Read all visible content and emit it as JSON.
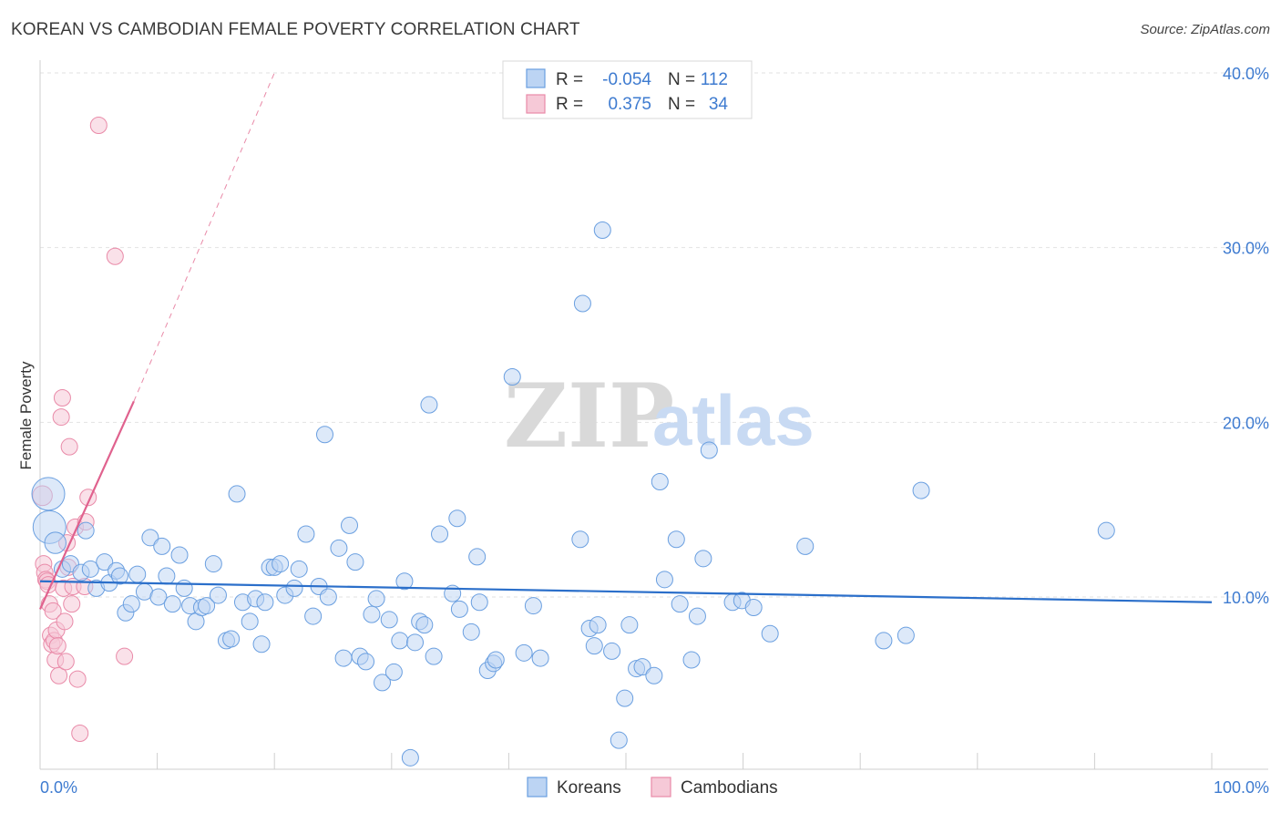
{
  "title": "KOREAN VS CAMBODIAN FEMALE POVERTY CORRELATION CHART",
  "source": "Source: ZipAtlas.com",
  "watermark": {
    "zip": "ZIP",
    "atlas": "atlas"
  },
  "colors": {
    "korean": "#6a9fe0",
    "korean_fill": "#bcd4f3",
    "korean_line": "#2b6fca",
    "cambodian": "#e98aa8",
    "cambodian_fill": "#f6c9d7",
    "cambodian_line": "#e0628e",
    "axis_tick": "#3e7bd0"
  },
  "legend": {
    "rows": [
      {
        "r_label": "R =",
        "r_value": "-0.054",
        "n_label": "N =",
        "n_value": "112"
      },
      {
        "r_label": "R =",
        "r_value": "0.375",
        "n_label": "N =",
        "n_value": "34"
      }
    ],
    "bottom": [
      "Koreans",
      "Cambodians"
    ]
  },
  "chart_data": {
    "type": "scatter",
    "title": "KOREAN VS CAMBODIAN FEMALE POVERTY CORRELATION CHART",
    "xlabel": "",
    "ylabel": "Female Poverty",
    "xlim": [
      0,
      100
    ],
    "ylim": [
      0,
      42
    ],
    "x_tick_labels": [
      "0.0%",
      "100.0%"
    ],
    "y_ticks": [
      10,
      20,
      30,
      40
    ],
    "y_tick_labels": [
      "10.0%",
      "20.0%",
      "30.0%",
      "40.0%"
    ],
    "grid": true,
    "legend_placement": "top-center",
    "series": [
      {
        "name": "Koreans",
        "r": -0.054,
        "n": 112,
        "trend": {
          "x": [
            0,
            100
          ],
          "y": [
            10.9,
            9.7
          ]
        },
        "points": [
          {
            "x": 0.7,
            "y": 15.9,
            "s": 2
          },
          {
            "x": 0.8,
            "y": 14.0,
            "s": 2
          },
          {
            "x": 1.3,
            "y": 13.1,
            "s": 1.3
          },
          {
            "x": 1.9,
            "y": 11.6,
            "s": 1
          },
          {
            "x": 2.6,
            "y": 11.9,
            "s": 1
          },
          {
            "x": 3.5,
            "y": 11.4,
            "s": 1
          },
          {
            "x": 3.9,
            "y": 13.8,
            "s": 1
          },
          {
            "x": 4.3,
            "y": 11.6,
            "s": 1
          },
          {
            "x": 4.8,
            "y": 10.5,
            "s": 1
          },
          {
            "x": 5.5,
            "y": 12.0,
            "s": 1
          },
          {
            "x": 5.9,
            "y": 10.8,
            "s": 1
          },
          {
            "x": 6.5,
            "y": 11.5,
            "s": 1
          },
          {
            "x": 6.8,
            "y": 11.2,
            "s": 1
          },
          {
            "x": 7.3,
            "y": 9.1,
            "s": 1
          },
          {
            "x": 7.8,
            "y": 9.6,
            "s": 1
          },
          {
            "x": 8.3,
            "y": 11.3,
            "s": 1
          },
          {
            "x": 8.9,
            "y": 10.3,
            "s": 1
          },
          {
            "x": 9.4,
            "y": 13.4,
            "s": 1
          },
          {
            "x": 10.1,
            "y": 10.0,
            "s": 1
          },
          {
            "x": 10.4,
            "y": 12.9,
            "s": 1
          },
          {
            "x": 10.8,
            "y": 11.2,
            "s": 1
          },
          {
            "x": 11.3,
            "y": 9.6,
            "s": 1
          },
          {
            "x": 11.9,
            "y": 12.4,
            "s": 1
          },
          {
            "x": 12.3,
            "y": 10.5,
            "s": 1
          },
          {
            "x": 12.8,
            "y": 9.5,
            "s": 1
          },
          {
            "x": 13.3,
            "y": 8.6,
            "s": 1
          },
          {
            "x": 13.8,
            "y": 9.4,
            "s": 1
          },
          {
            "x": 14.2,
            "y": 9.5,
            "s": 1
          },
          {
            "x": 14.8,
            "y": 11.9,
            "s": 1
          },
          {
            "x": 15.2,
            "y": 10.1,
            "s": 1
          },
          {
            "x": 15.9,
            "y": 7.5,
            "s": 1
          },
          {
            "x": 16.3,
            "y": 7.6,
            "s": 1
          },
          {
            "x": 16.8,
            "y": 15.9,
            "s": 1
          },
          {
            "x": 17.3,
            "y": 9.7,
            "s": 1
          },
          {
            "x": 17.9,
            "y": 8.6,
            "s": 1
          },
          {
            "x": 18.4,
            "y": 9.9,
            "s": 1
          },
          {
            "x": 18.9,
            "y": 7.3,
            "s": 1
          },
          {
            "x": 19.2,
            "y": 9.7,
            "s": 1
          },
          {
            "x": 19.6,
            "y": 11.7,
            "s": 1
          },
          {
            "x": 20.0,
            "y": 11.7,
            "s": 1
          },
          {
            "x": 20.5,
            "y": 11.9,
            "s": 1
          },
          {
            "x": 20.9,
            "y": 10.1,
            "s": 1
          },
          {
            "x": 21.7,
            "y": 10.5,
            "s": 1
          },
          {
            "x": 22.1,
            "y": 11.6,
            "s": 1
          },
          {
            "x": 22.7,
            "y": 13.6,
            "s": 1
          },
          {
            "x": 23.3,
            "y": 8.9,
            "s": 1
          },
          {
            "x": 23.8,
            "y": 10.6,
            "s": 1
          },
          {
            "x": 24.3,
            "y": 19.3,
            "s": 1
          },
          {
            "x": 24.6,
            "y": 10.0,
            "s": 1
          },
          {
            "x": 25.5,
            "y": 12.8,
            "s": 1
          },
          {
            "x": 25.9,
            "y": 6.5,
            "s": 1
          },
          {
            "x": 26.4,
            "y": 14.1,
            "s": 1
          },
          {
            "x": 26.9,
            "y": 12.0,
            "s": 1
          },
          {
            "x": 27.3,
            "y": 6.6,
            "s": 1
          },
          {
            "x": 27.8,
            "y": 6.3,
            "s": 1
          },
          {
            "x": 28.3,
            "y": 9.0,
            "s": 1
          },
          {
            "x": 28.7,
            "y": 9.9,
            "s": 1
          },
          {
            "x": 29.2,
            "y": 5.1,
            "s": 1
          },
          {
            "x": 29.8,
            "y": 8.7,
            "s": 1
          },
          {
            "x": 30.2,
            "y": 5.7,
            "s": 1
          },
          {
            "x": 30.7,
            "y": 7.5,
            "s": 1
          },
          {
            "x": 31.1,
            "y": 10.9,
            "s": 1
          },
          {
            "x": 31.6,
            "y": 0.8,
            "s": 1
          },
          {
            "x": 32.0,
            "y": 7.4,
            "s": 1
          },
          {
            "x": 32.4,
            "y": 8.6,
            "s": 1
          },
          {
            "x": 32.8,
            "y": 8.4,
            "s": 1
          },
          {
            "x": 33.2,
            "y": 21.0,
            "s": 1
          },
          {
            "x": 33.6,
            "y": 6.6,
            "s": 1
          },
          {
            "x": 34.1,
            "y": 13.6,
            "s": 1
          },
          {
            "x": 35.2,
            "y": 10.2,
            "s": 1
          },
          {
            "x": 35.6,
            "y": 14.5,
            "s": 1
          },
          {
            "x": 35.8,
            "y": 9.3,
            "s": 1
          },
          {
            "x": 36.8,
            "y": 8.0,
            "s": 1
          },
          {
            "x": 37.3,
            "y": 12.3,
            "s": 1
          },
          {
            "x": 37.5,
            "y": 9.7,
            "s": 1
          },
          {
            "x": 38.2,
            "y": 5.8,
            "s": 1
          },
          {
            "x": 38.7,
            "y": 6.2,
            "s": 1
          },
          {
            "x": 38.9,
            "y": 6.4,
            "s": 1
          },
          {
            "x": 40.3,
            "y": 22.6,
            "s": 1
          },
          {
            "x": 41.3,
            "y": 6.8,
            "s": 1
          },
          {
            "x": 42.1,
            "y": 9.5,
            "s": 1
          },
          {
            "x": 42.7,
            "y": 6.5,
            "s": 1
          },
          {
            "x": 46.1,
            "y": 13.3,
            "s": 1
          },
          {
            "x": 46.3,
            "y": 26.8,
            "s": 1
          },
          {
            "x": 46.9,
            "y": 8.2,
            "s": 1
          },
          {
            "x": 47.3,
            "y": 7.2,
            "s": 1
          },
          {
            "x": 47.6,
            "y": 8.4,
            "s": 1
          },
          {
            "x": 48.0,
            "y": 31.0,
            "s": 1
          },
          {
            "x": 48.8,
            "y": 6.9,
            "s": 1
          },
          {
            "x": 49.4,
            "y": 1.8,
            "s": 1
          },
          {
            "x": 49.9,
            "y": 4.2,
            "s": 1
          },
          {
            "x": 50.3,
            "y": 8.4,
            "s": 1
          },
          {
            "x": 50.9,
            "y": 5.9,
            "s": 1
          },
          {
            "x": 51.4,
            "y": 6.0,
            "s": 1
          },
          {
            "x": 52.4,
            "y": 5.5,
            "s": 1
          },
          {
            "x": 52.9,
            "y": 16.6,
            "s": 1
          },
          {
            "x": 53.3,
            "y": 11.0,
            "s": 1
          },
          {
            "x": 54.3,
            "y": 13.3,
            "s": 1
          },
          {
            "x": 54.6,
            "y": 9.6,
            "s": 1
          },
          {
            "x": 55.6,
            "y": 6.4,
            "s": 1
          },
          {
            "x": 56.1,
            "y": 8.9,
            "s": 1
          },
          {
            "x": 56.6,
            "y": 12.2,
            "s": 1
          },
          {
            "x": 57.1,
            "y": 18.4,
            "s": 1
          },
          {
            "x": 59.1,
            "y": 9.7,
            "s": 1
          },
          {
            "x": 59.9,
            "y": 9.8,
            "s": 1
          },
          {
            "x": 60.9,
            "y": 9.4,
            "s": 1
          },
          {
            "x": 62.3,
            "y": 7.9,
            "s": 1
          },
          {
            "x": 65.3,
            "y": 12.9,
            "s": 1
          },
          {
            "x": 72.0,
            "y": 7.5,
            "s": 1
          },
          {
            "x": 73.9,
            "y": 7.8,
            "s": 1
          },
          {
            "x": 75.2,
            "y": 16.1,
            "s": 1
          },
          {
            "x": 91.0,
            "y": 13.8,
            "s": 1
          }
        ]
      },
      {
        "name": "Cambodians",
        "r": 0.375,
        "n": 34,
        "trend": {
          "x": [
            0,
            8
          ],
          "y": [
            9.3,
            21.2
          ],
          "dashed_extension": {
            "x": [
              8,
              20
            ],
            "y": [
              21.2,
              40
            ]
          }
        },
        "points": [
          {
            "x": 0.2,
            "y": 15.8,
            "s": 1.2
          },
          {
            "x": 0.3,
            "y": 11.9,
            "s": 1
          },
          {
            "x": 0.4,
            "y": 11.4,
            "s": 1
          },
          {
            "x": 0.5,
            "y": 11.0,
            "s": 1
          },
          {
            "x": 0.6,
            "y": 10.9,
            "s": 1
          },
          {
            "x": 0.7,
            "y": 10.7,
            "s": 1
          },
          {
            "x": 0.8,
            "y": 9.6,
            "s": 1
          },
          {
            "x": 0.9,
            "y": 7.8,
            "s": 1
          },
          {
            "x": 1.0,
            "y": 7.3,
            "s": 1
          },
          {
            "x": 1.1,
            "y": 9.2,
            "s": 1
          },
          {
            "x": 1.2,
            "y": 7.5,
            "s": 1
          },
          {
            "x": 1.3,
            "y": 6.4,
            "s": 1
          },
          {
            "x": 1.4,
            "y": 8.1,
            "s": 1
          },
          {
            "x": 1.5,
            "y": 7.2,
            "s": 1
          },
          {
            "x": 1.6,
            "y": 5.5,
            "s": 1
          },
          {
            "x": 1.8,
            "y": 20.3,
            "s": 1
          },
          {
            "x": 1.9,
            "y": 21.4,
            "s": 1
          },
          {
            "x": 2.0,
            "y": 10.5,
            "s": 1
          },
          {
            "x": 2.1,
            "y": 8.6,
            "s": 1
          },
          {
            "x": 2.2,
            "y": 6.3,
            "s": 1
          },
          {
            "x": 2.3,
            "y": 13.1,
            "s": 1
          },
          {
            "x": 2.4,
            "y": 11.7,
            "s": 1
          },
          {
            "x": 2.5,
            "y": 18.6,
            "s": 1
          },
          {
            "x": 2.7,
            "y": 9.6,
            "s": 1
          },
          {
            "x": 2.8,
            "y": 10.6,
            "s": 1
          },
          {
            "x": 3.0,
            "y": 14.0,
            "s": 1
          },
          {
            "x": 3.2,
            "y": 5.3,
            "s": 1
          },
          {
            "x": 3.4,
            "y": 2.2,
            "s": 1
          },
          {
            "x": 3.8,
            "y": 10.6,
            "s": 1
          },
          {
            "x": 3.9,
            "y": 14.3,
            "s": 1
          },
          {
            "x": 4.1,
            "y": 15.7,
            "s": 1
          },
          {
            "x": 5.0,
            "y": 37.0,
            "s": 1
          },
          {
            "x": 6.4,
            "y": 29.5,
            "s": 1
          },
          {
            "x": 7.2,
            "y": 6.6,
            "s": 1
          }
        ]
      }
    ]
  }
}
